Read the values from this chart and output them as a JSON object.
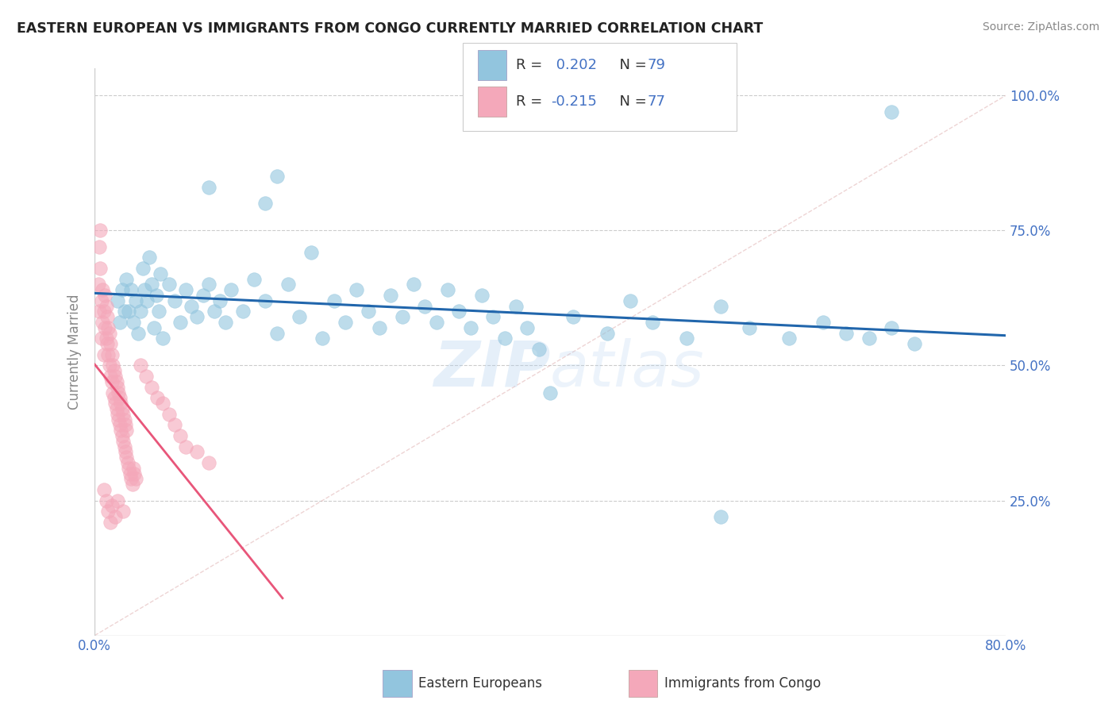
{
  "title": "EASTERN EUROPEAN VS IMMIGRANTS FROM CONGO CURRENTLY MARRIED CORRELATION CHART",
  "source": "Source: ZipAtlas.com",
  "ylabel": "Currently Married",
  "xmin": 0.0,
  "xmax": 0.8,
  "ymin": 0.0,
  "ymax": 1.05,
  "blue_R": 0.202,
  "blue_N": 79,
  "pink_R": -0.215,
  "pink_N": 77,
  "legend_label_blue": "Eastern Europeans",
  "legend_label_pink": "Immigrants from Congo",
  "watermark": "ZIPatlas",
  "blue_color": "#92C5DE",
  "pink_color": "#F4A8BA",
  "blue_line_color": "#2166AC",
  "pink_line_color": "#E8567A",
  "blue_scatter": [
    [
      0.02,
      0.62
    ],
    [
      0.022,
      0.58
    ],
    [
      0.024,
      0.64
    ],
    [
      0.026,
      0.6
    ],
    [
      0.028,
      0.66
    ],
    [
      0.03,
      0.6
    ],
    [
      0.032,
      0.64
    ],
    [
      0.034,
      0.58
    ],
    [
      0.036,
      0.62
    ],
    [
      0.038,
      0.56
    ],
    [
      0.04,
      0.6
    ],
    [
      0.042,
      0.68
    ],
    [
      0.044,
      0.64
    ],
    [
      0.046,
      0.62
    ],
    [
      0.048,
      0.7
    ],
    [
      0.05,
      0.65
    ],
    [
      0.052,
      0.57
    ],
    [
      0.054,
      0.63
    ],
    [
      0.056,
      0.6
    ],
    [
      0.058,
      0.67
    ],
    [
      0.06,
      0.55
    ],
    [
      0.065,
      0.65
    ],
    [
      0.07,
      0.62
    ],
    [
      0.075,
      0.58
    ],
    [
      0.08,
      0.64
    ],
    [
      0.085,
      0.61
    ],
    [
      0.09,
      0.59
    ],
    [
      0.095,
      0.63
    ],
    [
      0.1,
      0.65
    ],
    [
      0.105,
      0.6
    ],
    [
      0.11,
      0.62
    ],
    [
      0.115,
      0.58
    ],
    [
      0.12,
      0.64
    ],
    [
      0.13,
      0.6
    ],
    [
      0.14,
      0.66
    ],
    [
      0.15,
      0.62
    ],
    [
      0.16,
      0.56
    ],
    [
      0.17,
      0.65
    ],
    [
      0.18,
      0.59
    ],
    [
      0.19,
      0.71
    ],
    [
      0.2,
      0.55
    ],
    [
      0.21,
      0.62
    ],
    [
      0.22,
      0.58
    ],
    [
      0.23,
      0.64
    ],
    [
      0.24,
      0.6
    ],
    [
      0.25,
      0.57
    ],
    [
      0.26,
      0.63
    ],
    [
      0.27,
      0.59
    ],
    [
      0.28,
      0.65
    ],
    [
      0.29,
      0.61
    ],
    [
      0.3,
      0.58
    ],
    [
      0.31,
      0.64
    ],
    [
      0.32,
      0.6
    ],
    [
      0.15,
      0.8
    ],
    [
      0.16,
      0.85
    ],
    [
      0.33,
      0.57
    ],
    [
      0.34,
      0.63
    ],
    [
      0.35,
      0.59
    ],
    [
      0.36,
      0.55
    ],
    [
      0.37,
      0.61
    ],
    [
      0.38,
      0.57
    ],
    [
      0.39,
      0.53
    ],
    [
      0.4,
      0.45
    ],
    [
      0.42,
      0.59
    ],
    [
      0.45,
      0.56
    ],
    [
      0.47,
      0.62
    ],
    [
      0.49,
      0.58
    ],
    [
      0.52,
      0.55
    ],
    [
      0.55,
      0.61
    ],
    [
      0.575,
      0.57
    ],
    [
      0.61,
      0.55
    ],
    [
      0.64,
      0.58
    ],
    [
      0.66,
      0.56
    ],
    [
      0.68,
      0.55
    ],
    [
      0.7,
      0.57
    ],
    [
      0.72,
      0.54
    ],
    [
      0.1,
      0.83
    ],
    [
      0.7,
      0.97
    ],
    [
      0.55,
      0.22
    ]
  ],
  "pink_scatter": [
    [
      0.003,
      0.65
    ],
    [
      0.004,
      0.6
    ],
    [
      0.005,
      0.68
    ],
    [
      0.006,
      0.55
    ],
    [
      0.006,
      0.62
    ],
    [
      0.007,
      0.58
    ],
    [
      0.007,
      0.64
    ],
    [
      0.008,
      0.52
    ],
    [
      0.008,
      0.6
    ],
    [
      0.009,
      0.57
    ],
    [
      0.009,
      0.63
    ],
    [
      0.01,
      0.55
    ],
    [
      0.01,
      0.61
    ],
    [
      0.011,
      0.54
    ],
    [
      0.011,
      0.59
    ],
    [
      0.012,
      0.52
    ],
    [
      0.012,
      0.57
    ],
    [
      0.013,
      0.5
    ],
    [
      0.013,
      0.56
    ],
    [
      0.014,
      0.48
    ],
    [
      0.014,
      0.54
    ],
    [
      0.015,
      0.47
    ],
    [
      0.015,
      0.52
    ],
    [
      0.016,
      0.45
    ],
    [
      0.016,
      0.5
    ],
    [
      0.017,
      0.44
    ],
    [
      0.017,
      0.49
    ],
    [
      0.018,
      0.43
    ],
    [
      0.018,
      0.48
    ],
    [
      0.019,
      0.42
    ],
    [
      0.019,
      0.47
    ],
    [
      0.02,
      0.41
    ],
    [
      0.02,
      0.46
    ],
    [
      0.021,
      0.4
    ],
    [
      0.021,
      0.45
    ],
    [
      0.022,
      0.39
    ],
    [
      0.022,
      0.44
    ],
    [
      0.023,
      0.38
    ],
    [
      0.023,
      0.43
    ],
    [
      0.024,
      0.37
    ],
    [
      0.024,
      0.42
    ],
    [
      0.025,
      0.36
    ],
    [
      0.025,
      0.41
    ],
    [
      0.026,
      0.35
    ],
    [
      0.026,
      0.4
    ],
    [
      0.027,
      0.34
    ],
    [
      0.027,
      0.39
    ],
    [
      0.028,
      0.33
    ],
    [
      0.028,
      0.38
    ],
    [
      0.029,
      0.32
    ],
    [
      0.03,
      0.31
    ],
    [
      0.031,
      0.3
    ],
    [
      0.032,
      0.29
    ],
    [
      0.033,
      0.28
    ],
    [
      0.034,
      0.31
    ],
    [
      0.035,
      0.3
    ],
    [
      0.036,
      0.29
    ],
    [
      0.04,
      0.5
    ],
    [
      0.045,
      0.48
    ],
    [
      0.05,
      0.46
    ],
    [
      0.055,
      0.44
    ],
    [
      0.06,
      0.43
    ],
    [
      0.065,
      0.41
    ],
    [
      0.07,
      0.39
    ],
    [
      0.075,
      0.37
    ],
    [
      0.08,
      0.35
    ],
    [
      0.09,
      0.34
    ],
    [
      0.1,
      0.32
    ],
    [
      0.004,
      0.72
    ],
    [
      0.005,
      0.75
    ],
    [
      0.008,
      0.27
    ],
    [
      0.01,
      0.25
    ],
    [
      0.012,
      0.23
    ],
    [
      0.014,
      0.21
    ],
    [
      0.015,
      0.24
    ],
    [
      0.018,
      0.22
    ],
    [
      0.02,
      0.25
    ],
    [
      0.025,
      0.23
    ]
  ]
}
